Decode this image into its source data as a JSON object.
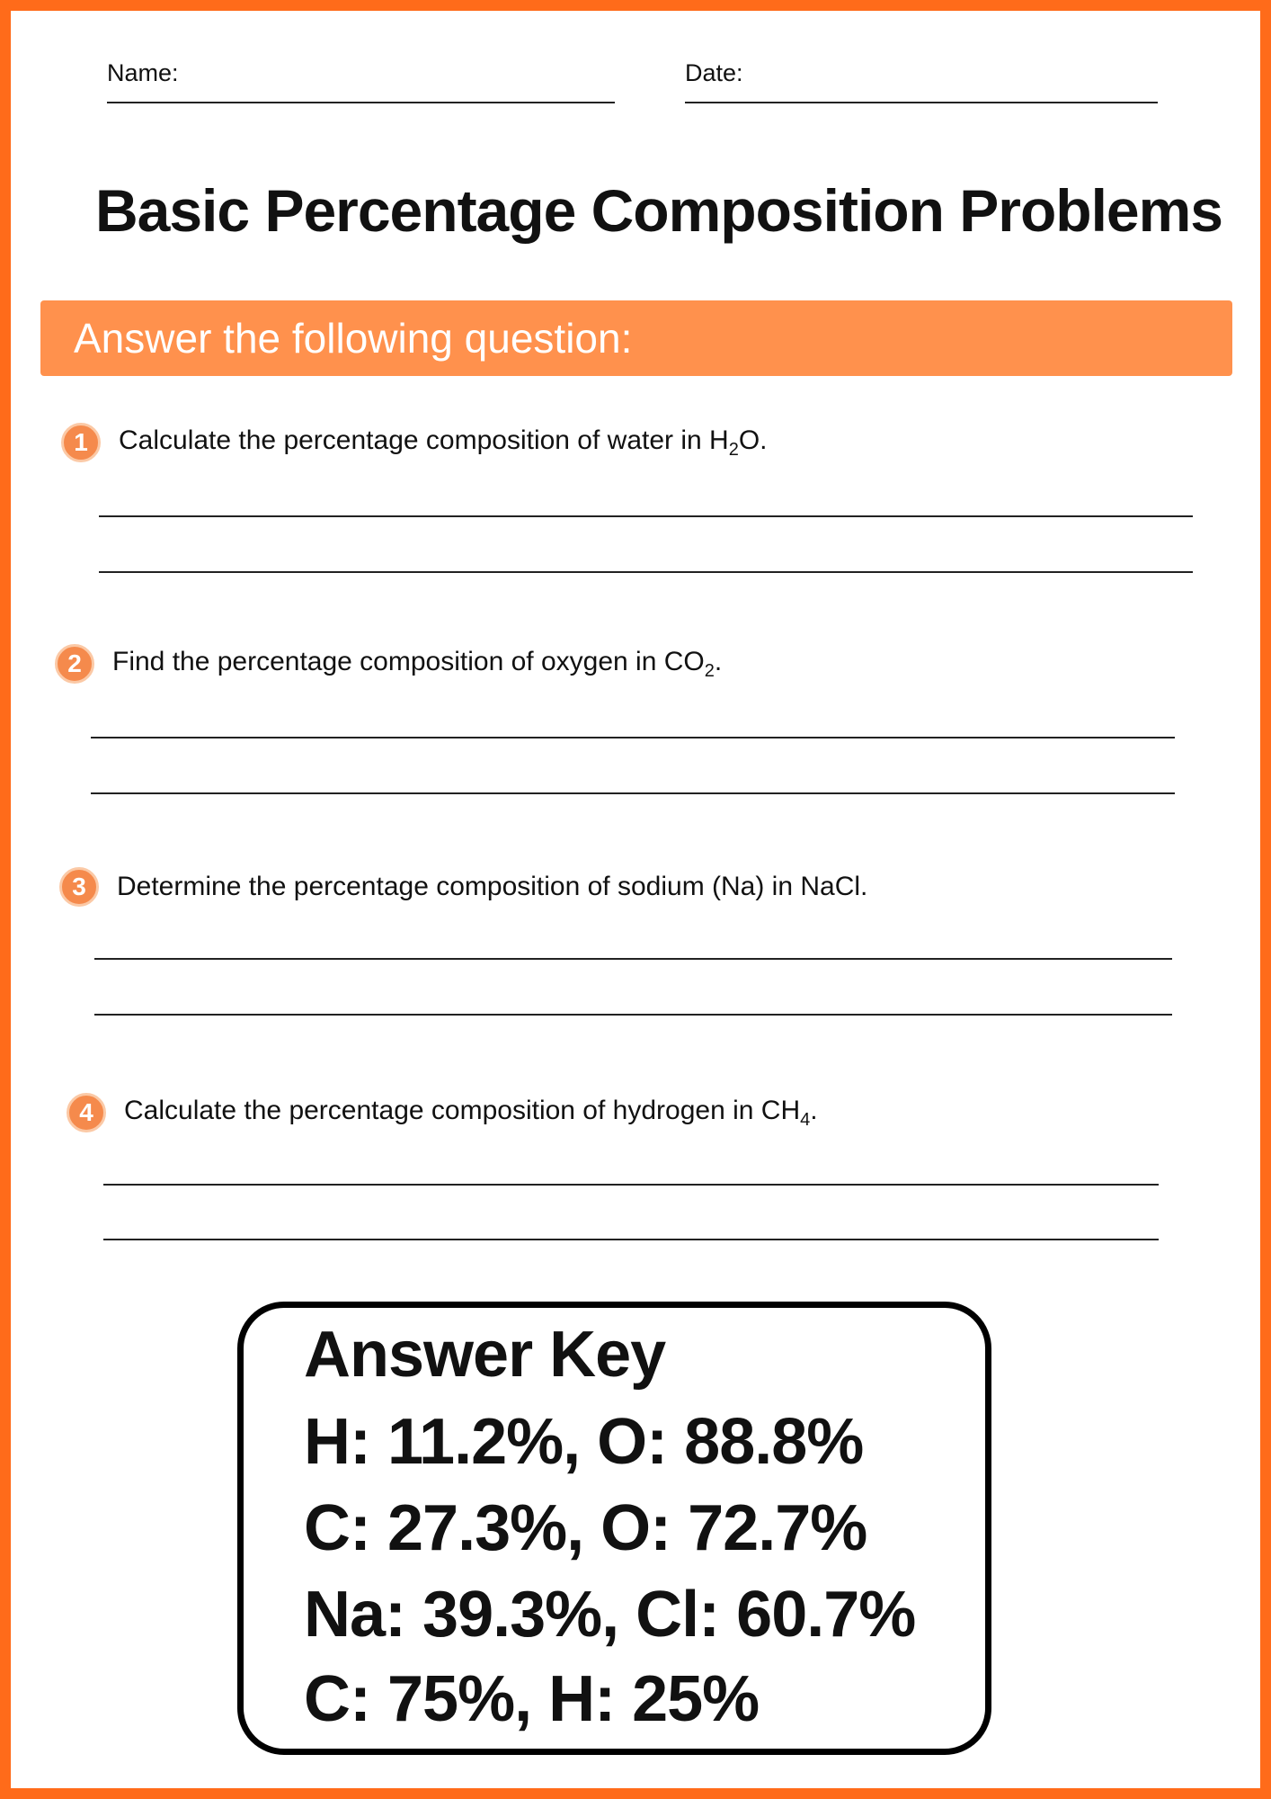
{
  "header": {
    "name_label": "Name:",
    "date_label": "Date:"
  },
  "title": "Basic Percentage Composition Problems",
  "banner": "Answer the following question:",
  "questions": [
    {
      "number": "1",
      "text": "Calculate the percentage composition of water in H",
      "sub": "2",
      "tail": "O."
    },
    {
      "number": "2",
      "text": "Find the percentage composition of oxygen in CO",
      "sub": "2",
      "tail": "."
    },
    {
      "number": "3",
      "text": "Determine the percentage composition of sodium (Na) in NaCl.",
      "sub": "",
      "tail": ""
    },
    {
      "number": "4",
      "text": "Calculate the percentage composition of hydrogen in CH",
      "sub": "4",
      "tail": "."
    }
  ],
  "answer_key": {
    "title": "Answer Key",
    "lines": [
      "H: 11.2%, O: 88.8%",
      "C: 27.3%, O: 72.7%",
      "Na: 39.3%, Cl: 60.7%",
      "C: 75%, H: 25%"
    ]
  },
  "colors": {
    "border": "#FF6B1A",
    "banner": "#FF914D",
    "number_badge": "#F58A4C"
  }
}
